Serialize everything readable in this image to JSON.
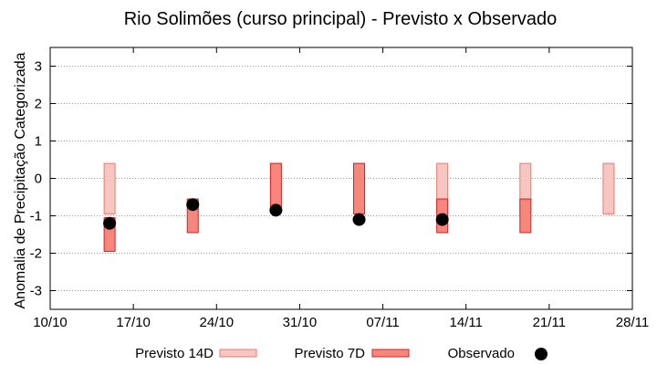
{
  "chart_data": {
    "type": "range-bar-with-points",
    "title": "Rio Solimões (curso principal) - Previsto x Observado",
    "xlabel": "",
    "ylabel": "Anomalia de Precipitação Categorizada",
    "xlim": [
      "10/10",
      "28/11"
    ],
    "ylim": [
      -3.5,
      3.5
    ],
    "x_ticks": [
      "10/10",
      "17/10",
      "24/10",
      "31/10",
      "07/11",
      "14/11",
      "21/11",
      "28/11"
    ],
    "y_ticks": [
      3,
      2,
      1,
      0,
      -1,
      -2,
      -3
    ],
    "grid": "horizontal dotted",
    "legend_position": "bottom",
    "series": [
      {
        "name": "Previsto 14D",
        "kind": "range",
        "color": "#f7c6c0",
        "edge": "#e87a70",
        "points": [
          {
            "date": "15/10",
            "low": -0.95,
            "high": 0.4
          },
          {
            "date": "29/10",
            "low": 0.4,
            "high": 0.4
          },
          {
            "date": "05/11",
            "low": -0.95,
            "high": 0.4
          },
          {
            "date": "12/11",
            "low": -0.95,
            "high": 0.4
          },
          {
            "date": "19/11",
            "low": -0.95,
            "high": 0.4
          },
          {
            "date": "26/11",
            "low": -0.95,
            "high": 0.4
          }
        ]
      },
      {
        "name": "Previsto 7D",
        "kind": "range",
        "color": "#f7877d",
        "edge": "#d42020",
        "points": [
          {
            "date": "15/10",
            "low": -1.95,
            "high": -1.05
          },
          {
            "date": "22/10",
            "low": -1.45,
            "high": -0.55
          },
          {
            "date": "29/10",
            "low": -0.85,
            "high": 0.4
          },
          {
            "date": "05/11",
            "low": -0.95,
            "high": 0.4
          },
          {
            "date": "12/11",
            "low": -1.45,
            "high": -0.55
          },
          {
            "date": "19/11",
            "low": -1.45,
            "high": -0.55
          }
        ]
      },
      {
        "name": "Observado",
        "kind": "point",
        "color": "#000000",
        "points": [
          {
            "date": "15/10",
            "value": -1.2
          },
          {
            "date": "22/10",
            "value": -0.7
          },
          {
            "date": "29/10",
            "value": -0.85
          },
          {
            "date": "05/11",
            "value": -1.1
          },
          {
            "date": "12/11",
            "value": -1.1
          }
        ]
      }
    ]
  }
}
